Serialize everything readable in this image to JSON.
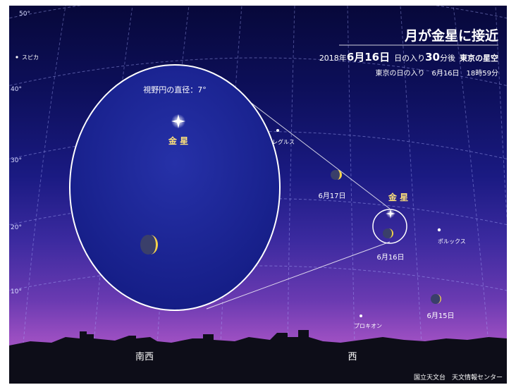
{
  "title": "月が金星に接近",
  "subtitle": {
    "year": "2018年",
    "date": "6月16日",
    "after": "日の入り",
    "minutes": "30",
    "after2": "分後",
    "place": "東京の星空"
  },
  "sunset_line": "東京の日の入り　6月16日　18時59分",
  "fov_label": "視野円の直径：7°",
  "altitude_labels": [
    "50°",
    "40°",
    "30°",
    "20°",
    "10°"
  ],
  "stars": {
    "spica": "スピカ",
    "regulus": "レグルス",
    "pollux": "ポルックス",
    "procyon": "プロキオン"
  },
  "venus_label": "金 星",
  "inset_venus_label": "金 星",
  "moon_dates": {
    "jun17": "6月17日",
    "jun16": "6月16日",
    "jun15": "6月15日"
  },
  "directions": {
    "southwest": "南西",
    "west": "西"
  },
  "credit": "国立天文台　天文情報センター",
  "colors": {
    "sky_top": "#07083a",
    "sky_bottom": "#b064c8",
    "inset_fill": "#1b2498",
    "venus_label": "#ffe27a",
    "moon_crescent": "#f4d34a",
    "ground": "#0d0d18"
  }
}
